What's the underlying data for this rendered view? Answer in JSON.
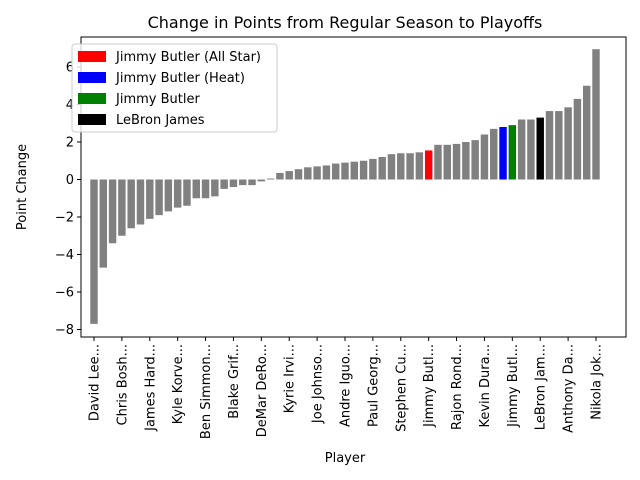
{
  "chart_data": {
    "type": "bar",
    "title": "Change in Points from Regular Season to Playoffs",
    "xlabel": "Player",
    "ylabel": "Point Change",
    "ylim": [
      -8.4,
      7.6
    ],
    "yticks": [
      -8,
      -6,
      -4,
      -2,
      0,
      2,
      4,
      6
    ],
    "ytick_labels": [
      "−8",
      "−6",
      "−4",
      "−2",
      "0",
      "2",
      "4",
      "6"
    ],
    "grid": false,
    "legend_position": "top-left",
    "default_color": "#808080",
    "values": [
      -7.7,
      -4.7,
      -3.4,
      -3.0,
      -2.6,
      -2.4,
      -2.1,
      -1.9,
      -1.7,
      -1.5,
      -1.4,
      -1.0,
      -1.0,
      -0.9,
      -0.5,
      -0.4,
      -0.3,
      -0.3,
      -0.1,
      0.05,
      0.35,
      0.45,
      0.55,
      0.65,
      0.7,
      0.75,
      0.85,
      0.9,
      0.95,
      1.0,
      1.1,
      1.2,
      1.35,
      1.4,
      1.4,
      1.45,
      1.55,
      1.85,
      1.85,
      1.9,
      2.0,
      2.1,
      2.4,
      2.7,
      2.8,
      2.9,
      3.2,
      3.2,
      3.3,
      3.65,
      3.65,
      3.85,
      4.3,
      5.0,
      6.95
    ],
    "highlights": [
      {
        "index": 36,
        "color": "#ff0000"
      },
      {
        "index": 44,
        "color": "#0000ff"
      },
      {
        "index": 45,
        "color": "#008000"
      },
      {
        "index": 48,
        "color": "#000000"
      }
    ],
    "xticks": [
      {
        "index": 0,
        "label": "David Lee..."
      },
      {
        "index": 3,
        "label": "Chris Bosh..."
      },
      {
        "index": 6,
        "label": "James Hard..."
      },
      {
        "index": 9,
        "label": "Kyle Korve..."
      },
      {
        "index": 12,
        "label": "Ben Simmon..."
      },
      {
        "index": 15,
        "label": "Blake Grif..."
      },
      {
        "index": 18,
        "label": "DeMar DeRo..."
      },
      {
        "index": 21,
        "label": "Kyrie Irvi..."
      },
      {
        "index": 24,
        "label": "Joe Johnso..."
      },
      {
        "index": 27,
        "label": "Andre Iguo..."
      },
      {
        "index": 30,
        "label": "Paul Georg..."
      },
      {
        "index": 33,
        "label": "Stephen Cu..."
      },
      {
        "index": 36,
        "label": "Jimmy Butl..."
      },
      {
        "index": 39,
        "label": "Rajon Rond..."
      },
      {
        "index": 42,
        "label": "Kevin Dura..."
      },
      {
        "index": 45,
        "label": "Jimmy Butl..."
      },
      {
        "index": 48,
        "label": "LeBron Jam..."
      },
      {
        "index": 51,
        "label": "Anthony Da..."
      },
      {
        "index": 54,
        "label": "Nikola Jok..."
      }
    ],
    "legend": [
      {
        "label": "Jimmy Butler (All Star)",
        "color": "#ff0000"
      },
      {
        "label": "Jimmy Butler (Heat)",
        "color": "#0000ff"
      },
      {
        "label": "Jimmy Butler",
        "color": "#008000"
      },
      {
        "label": "LeBron James",
        "color": "#000000"
      }
    ]
  }
}
